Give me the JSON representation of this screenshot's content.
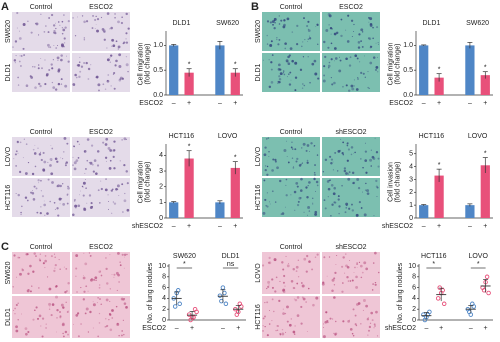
{
  "panels": [
    {
      "label": "A",
      "columns": [
        "Control",
        "ESCO2"
      ],
      "rows": [
        "SW620",
        "DLD1"
      ]
    },
    {
      "columns": [
        "Control",
        "ESCO2"
      ],
      "rows": [
        "LOVO",
        "HCT116"
      ]
    },
    {
      "label": "B",
      "columns": [
        "Control",
        "ESCO2"
      ],
      "rows": [
        "SW620",
        "DLD1"
      ]
    },
    {
      "columns": [
        "Control",
        "shESCO2"
      ],
      "rows": [
        "LOVO",
        "HCT116"
      ]
    },
    {
      "label": "C",
      "columns": [
        "Control",
        "ESCO2"
      ],
      "rows": [
        "SW620",
        "DLD1"
      ]
    },
    {
      "columns": [
        "Control",
        "shESCO2"
      ],
      "rows": [
        "LOVO",
        "HCT116"
      ]
    }
  ],
  "chart_data": [
    {
      "type": "bar",
      "y_label": [
        "Cell migration",
        "(fold change)"
      ],
      "groups": [
        "DLD1",
        "SW620"
      ],
      "x_label": "ESCO2",
      "categories": [
        "–",
        "+",
        "–",
        "+"
      ],
      "values": [
        1.0,
        0.45,
        1.0,
        0.45
      ],
      "errors": [
        0.02,
        0.08,
        0.08,
        0.08
      ],
      "annotations": [
        null,
        "*",
        null,
        "*"
      ],
      "colors": [
        "#4f86c6",
        "#e8507a",
        "#4f86c6",
        "#e8507a"
      ],
      "ylim": [
        0,
        1.25
      ],
      "yticks": [
        {
          "value": 0,
          "label": "0.0"
        },
        0.5,
        {
          "value": 1,
          "label": "1.0"
        }
      ]
    },
    {
      "type": "bar",
      "y_label": [
        "Cell migration",
        "(fold change)"
      ],
      "groups": [
        "HCT116",
        "LOVO"
      ],
      "x_label": "shESCO2",
      "categories": [
        "–",
        "+",
        "–",
        "+"
      ],
      "values": [
        1.0,
        3.8,
        1.0,
        3.2
      ],
      "errors": [
        0.05,
        0.5,
        0.1,
        0.4
      ],
      "annotations": [
        null,
        "*",
        null,
        "*"
      ],
      "colors": [
        "#4f86c6",
        "#e8507a",
        "#4f86c6",
        "#e8507a"
      ],
      "ylim": [
        0,
        4.6
      ],
      "yticks": [
        0,
        1,
        2,
        3,
        4
      ]
    },
    {
      "type": "bar",
      "y_label": [
        "Cell migration",
        "(fold change)"
      ],
      "groups": [
        "DLD1",
        "SW620"
      ],
      "x_label": "ESCO2",
      "categories": [
        "–",
        "+",
        "–",
        "+"
      ],
      "values": [
        1.0,
        0.35,
        1.0,
        0.4
      ],
      "errors": [
        0.01,
        0.08,
        0.06,
        0.07
      ],
      "annotations": [
        null,
        "*",
        null,
        "*"
      ],
      "colors": [
        "#4f86c6",
        "#e8507a",
        "#4f86c6",
        "#e8507a"
      ],
      "ylim": [
        0,
        1.25
      ],
      "yticks": [
        {
          "value": 0,
          "label": "0.0"
        },
        0.5,
        {
          "value": 1,
          "label": "1.0"
        }
      ]
    },
    {
      "type": "bar",
      "y_label": [
        "Cell invasion",
        "(fold change)"
      ],
      "groups": [
        "HCT116",
        "LOVO"
      ],
      "x_label": "shESCO2",
      "categories": [
        "–",
        "+",
        "–",
        "+"
      ],
      "values": [
        1.0,
        3.3,
        1.0,
        4.1
      ],
      "errors": [
        0.05,
        0.5,
        0.1,
        0.6
      ],
      "annotations": [
        null,
        "*",
        null,
        "*"
      ],
      "colors": [
        "#4f86c6",
        "#e8507a",
        "#4f86c6",
        "#e8507a"
      ],
      "ylim": [
        0,
        5.6
      ],
      "yticks": [
        0,
        1,
        2,
        3,
        4,
        5
      ]
    },
    {
      "type": "dot",
      "y_label": [
        "No. of lung nodules"
      ],
      "groups": [
        "SW620",
        "DLD1"
      ],
      "x_label": "ESCO2",
      "categories": [
        "–",
        "+",
        "–",
        "+"
      ],
      "points": [
        [
          4,
          5,
          3,
          2.5,
          5.5
        ],
        [
          1,
          0.5,
          2,
          0,
          0.5,
          1.5
        ],
        [
          4.5,
          6,
          3,
          3.5,
          5
        ],
        [
          2,
          1.5,
          2.5,
          1,
          3
        ]
      ],
      "means": [
        4,
        0.9,
        4.4,
        2.0
      ],
      "sd": [
        1.2,
        0.7,
        1.2,
        0.7
      ],
      "comparisons": [
        "*",
        "ns"
      ],
      "colors": [
        "#4f86c6",
        "#e8507a",
        "#4f86c6",
        "#e8507a"
      ],
      "ylim": [
        0,
        10
      ],
      "yticks": [
        0,
        2,
        4,
        6,
        8,
        10
      ]
    },
    {
      "type": "dot",
      "y_label": [
        "No. of lung nodules"
      ],
      "groups": [
        "HCT116",
        "LOVO"
      ],
      "x_label": "shESCO2",
      "categories": [
        "–",
        "+",
        "–",
        "+"
      ],
      "points": [
        [
          1,
          0.5,
          1.5,
          0,
          1
        ],
        [
          4,
          5,
          3,
          6,
          5.5
        ],
        [
          2,
          1,
          2.5,
          1.5,
          3
        ],
        [
          6,
          7,
          5,
          5.5,
          8
        ]
      ],
      "means": [
        0.8,
        4.7,
        2.0,
        6.3
      ],
      "sd": [
        0.6,
        1.2,
        0.7,
        1.2
      ],
      "comparisons": [
        "*",
        "*"
      ],
      "colors": [
        "#4f86c6",
        "#e8507a",
        "#4f86c6",
        "#e8507a"
      ],
      "ylim": [
        0,
        10
      ],
      "yticks": [
        0,
        2,
        4,
        6,
        8,
        10
      ]
    }
  ]
}
